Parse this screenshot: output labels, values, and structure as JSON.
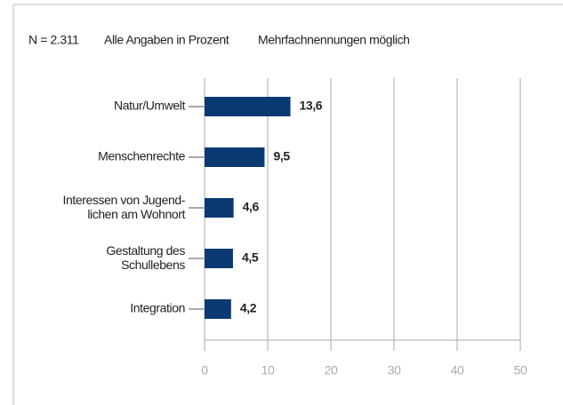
{
  "chart_data": {
    "type": "barh",
    "notes": [
      "N = 2.311",
      "Alle Angaben in Prozent",
      "Mehrfachnennungen möglich"
    ],
    "categories": [
      "Natur/Umwelt",
      "Menschenrechte",
      "Interessen von Jugend-\nlichen am Wohnort",
      "Gestaltung des\nSchullebens",
      "Integration"
    ],
    "values": [
      13.6,
      9.5,
      4.6,
      4.5,
      4.2
    ],
    "value_labels": [
      "13,6",
      "9,5",
      "4,6",
      "4,5",
      "4,2"
    ],
    "color": "#0b3a73",
    "xlim": [
      0,
      50
    ],
    "xticks": [
      0,
      10,
      20,
      30,
      40,
      50
    ],
    "grid": true
  }
}
